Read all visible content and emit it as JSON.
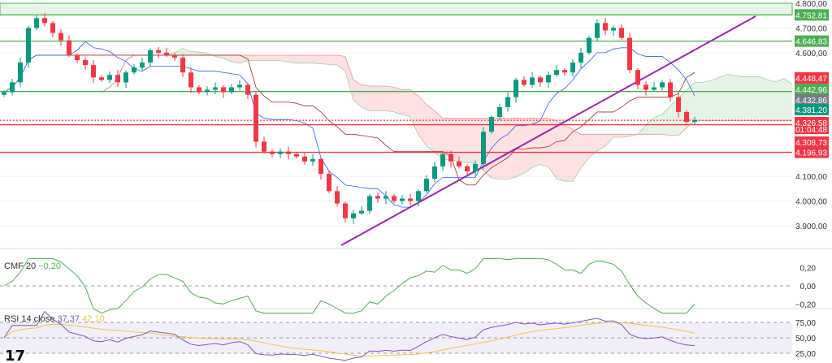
{
  "chart_data": {
    "type": "candlestick",
    "price_axis": {
      "ticks": [
        "4.800,00",
        "4.700,00",
        "4.600,00",
        "4.100,00",
        "4.000,00",
        "3.900,00"
      ],
      "values": [
        4800,
        4700,
        4600,
        4100,
        4000,
        3900
      ],
      "range": [
        3870,
        4815
      ]
    },
    "closes": [
      4440,
      4480,
      4560,
      4700,
      4740,
      4720,
      4680,
      4650,
      4590,
      4570,
      4550,
      4500,
      4490,
      4510,
      4480,
      4520,
      4540,
      4560,
      4610,
      4600,
      4590,
      4580,
      4520,
      4460,
      4440,
      4450,
      4460,
      4440,
      4460,
      4470,
      4430,
      4240,
      4200,
      4190,
      4200,
      4190,
      4180,
      4160,
      4170,
      4110,
      4040,
      3990,
      3930,
      3950,
      3960,
      4020,
      4010,
      4020,
      4000,
      4010,
      4000,
      4040,
      4090,
      4140,
      4190,
      4160,
      4140,
      4120,
      4150,
      4280,
      4340,
      4380,
      4420,
      4490,
      4470,
      4500,
      4480,
      4510,
      4530,
      4520,
      4560,
      4600,
      4660,
      4720,
      4690,
      4700,
      4660,
      4530,
      4470,
      4450,
      4460,
      4480,
      4420,
      4360,
      4320,
      4326.58
    ],
    "horizontal_levels": [
      {
        "value": 4752.81,
        "label": "4.752,81",
        "color": "#4caf50"
      },
      {
        "value": 4646.83,
        "label": "4.646,83",
        "color": "#4caf50"
      },
      {
        "value": 4448.47,
        "label": "4.448,47",
        "color": "#f23645"
      },
      {
        "value": 4442.96,
        "label": "4.442,96",
        "color": "#4caf50"
      },
      {
        "value": 4432.86,
        "label": "4.432,86",
        "color": "#787b86"
      },
      {
        "value": 4381.2,
        "label": "4.381,20",
        "color": "#089981"
      },
      {
        "value": 4326.58,
        "label": "4.326,58",
        "color": "#f23645"
      },
      {
        "value": 4308.73,
        "label": "4.308,73",
        "color": "#f23645"
      },
      {
        "value": 4196.93,
        "label": "4.196,93",
        "color": "#f23645"
      }
    ],
    "countdown": "01:04:48",
    "cmf": {
      "title": "CMF 20",
      "value": "−0,20",
      "ticks": [
        "0,20",
        "0,00",
        "−0,20"
      ],
      "tick_values": [
        0.2,
        0,
        -0.2
      ]
    },
    "rsi": {
      "title": "RSI 14 close",
      "value": "37,37",
      "ma_value": "42,10",
      "ticks": [
        "75,00",
        "50,00",
        "25,00"
      ],
      "tick_values": [
        75,
        50,
        25
      ]
    }
  },
  "logo": "TV"
}
